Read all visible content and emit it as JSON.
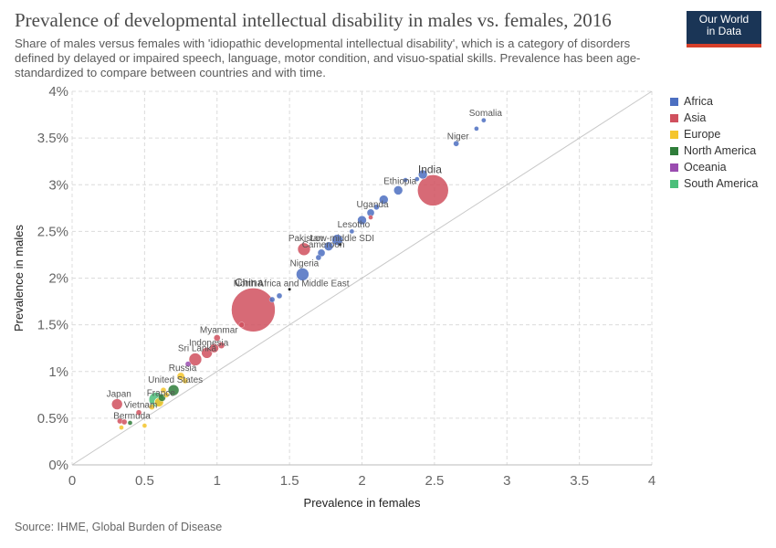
{
  "header": {
    "title": "Prevalence of developmental intellectual disability in males vs. females, 2016",
    "subtitle": "Share of males versus females with 'idiopathic developmental intellectual disability', which is a category of disorders defined by delayed or impaired speech, language, motor condition, and visuo-spatial skills. Prevalence has been age-standardized to compare between countries and with time.",
    "logo_line1": "Our World",
    "logo_line2": "in Data"
  },
  "footer": {
    "source": "Source: IHME, Global Burden of Disease"
  },
  "legend": [
    {
      "label": "Africa",
      "color": "#4c6fc1"
    },
    {
      "label": "Asia",
      "color": "#d0505e"
    },
    {
      "label": "Europe",
      "color": "#f5c52d"
    },
    {
      "label": "North America",
      "color": "#2f7d3a"
    },
    {
      "label": "Oceania",
      "color": "#9a4cb0"
    },
    {
      "label": "South America",
      "color": "#4bbf7a"
    }
  ],
  "chart_data": {
    "type": "scatter",
    "xlabel": "Prevalence in females",
    "ylabel": "Prevalence in males",
    "xlim": [
      0,
      4
    ],
    "ylim": [
      0,
      4
    ],
    "x_ticks": [
      "0",
      "0.5",
      "1",
      "1.5",
      "2",
      "2.5",
      "3",
      "3.5",
      "4"
    ],
    "y_ticks": [
      "0%",
      "0.5%",
      "1%",
      "1.5%",
      "2%",
      "2.5%",
      "3%",
      "3.5%",
      "4%"
    ],
    "grid": true,
    "reference_line": "y = x",
    "points": [
      {
        "label": "Somalia",
        "region": "Africa",
        "x": 2.84,
        "y": 3.69,
        "size": 2.5,
        "show_label": true
      },
      {
        "label": "",
        "region": "Africa",
        "x": 2.79,
        "y": 3.6,
        "size": 2.5
      },
      {
        "label": "Niger",
        "region": "Africa",
        "x": 2.65,
        "y": 3.44,
        "size": 3,
        "show_label": true
      },
      {
        "label": "India",
        "region": "Asia",
        "x": 2.49,
        "y": 2.94,
        "size": 17,
        "show_label": true,
        "big": true
      },
      {
        "label": "",
        "region": "Africa",
        "x": 2.42,
        "y": 3.11,
        "size": 5
      },
      {
        "label": "",
        "region": "Africa",
        "x": 2.38,
        "y": 3.06,
        "size": 2.5
      },
      {
        "label": "",
        "region": "Africa",
        "x": 2.3,
        "y": 3.05,
        "size": 2.5
      },
      {
        "label": "Ethiopia",
        "region": "Africa",
        "x": 2.25,
        "y": 2.94,
        "size": 5,
        "show_label": true
      },
      {
        "label": "",
        "region": "Africa",
        "x": 2.15,
        "y": 2.84,
        "size": 5
      },
      {
        "label": "",
        "region": "Africa",
        "x": 2.1,
        "y": 2.76,
        "size": 3
      },
      {
        "label": "Uganda",
        "region": "Africa",
        "x": 2.06,
        "y": 2.7,
        "size": 4,
        "show_label": true
      },
      {
        "label": "",
        "region": "Africa",
        "x": 2.0,
        "y": 2.62,
        "size": 5
      },
      {
        "label": "",
        "region": "Asia",
        "x": 2.06,
        "y": 2.65,
        "size": 2.5
      },
      {
        "label": "Lesotho",
        "region": "Africa",
        "x": 1.93,
        "y": 2.5,
        "size": 2.5,
        "show_label": true
      },
      {
        "label": "Pakistan",
        "region": "Asia",
        "x": 1.6,
        "y": 2.31,
        "size": 7,
        "show_label": true
      },
      {
        "label": "Low-middle SDI",
        "region": "",
        "x": 1.85,
        "y": 2.36,
        "size": 1.5,
        "show_label": true
      },
      {
        "label": "",
        "region": "Africa",
        "x": 1.83,
        "y": 2.41,
        "size": 6
      },
      {
        "label": "",
        "region": "Africa",
        "x": 1.77,
        "y": 2.34,
        "size": 5
      },
      {
        "label": "Cameroon",
        "region": "Africa",
        "x": 1.72,
        "y": 2.27,
        "size": 4,
        "show_label": true
      },
      {
        "label": "",
        "region": "Africa",
        "x": 1.7,
        "y": 2.22,
        "size": 3
      },
      {
        "label": "Nigeria",
        "region": "Africa",
        "x": 1.59,
        "y": 2.04,
        "size": 7,
        "show_label": true
      },
      {
        "label": "North Africa and Middle East",
        "region": "",
        "x": 1.5,
        "y": 1.88,
        "size": 1.5,
        "show_label": true
      },
      {
        "label": "",
        "region": "Africa",
        "x": 1.43,
        "y": 1.81,
        "size": 3
      },
      {
        "label": "",
        "region": "Africa",
        "x": 1.38,
        "y": 1.77,
        "size": 3
      },
      {
        "label": "China",
        "region": "Asia",
        "x": 1.25,
        "y": 1.66,
        "size": 24,
        "show_label": true,
        "big": true
      },
      {
        "label": "",
        "region": "Asia",
        "x": 1.17,
        "y": 1.5,
        "size": 3
      },
      {
        "label": "Myanmar",
        "region": "Asia",
        "x": 1.0,
        "y": 1.36,
        "size": 3.5,
        "show_label": true
      },
      {
        "label": "",
        "region": "Asia",
        "x": 1.03,
        "y": 1.28,
        "size": 3.5
      },
      {
        "label": "",
        "region": "Asia",
        "x": 0.98,
        "y": 1.25,
        "size": 5
      },
      {
        "label": "Indonesia",
        "region": "Asia",
        "x": 0.93,
        "y": 1.2,
        "size": 6,
        "show_label": true
      },
      {
        "label": "Sri Lanka",
        "region": "Asia",
        "x": 0.85,
        "y": 1.13,
        "size": 7,
        "show_label": true
      },
      {
        "label": "",
        "region": "Oceania",
        "x": 0.8,
        "y": 1.08,
        "size": 3
      },
      {
        "label": "Russia",
        "region": "Europe",
        "x": 0.75,
        "y": 0.95,
        "size": 4,
        "show_label": true
      },
      {
        "label": "",
        "region": "Europe",
        "x": 0.78,
        "y": 0.9,
        "size": 3
      },
      {
        "label": "United States",
        "region": "North America",
        "x": 0.7,
        "y": 0.8,
        "size": 6,
        "show_label": true
      },
      {
        "label": "",
        "region": "Europe",
        "x": 0.65,
        "y": 0.75,
        "size": 3
      },
      {
        "label": "",
        "region": "North America",
        "x": 0.62,
        "y": 0.72,
        "size": 4
      },
      {
        "label": "France",
        "region": "Europe",
        "x": 0.6,
        "y": 0.67,
        "size": 5,
        "show_label": true
      },
      {
        "label": "",
        "region": "South America",
        "x": 0.58,
        "y": 0.7,
        "size": 8
      },
      {
        "label": "",
        "region": "Europe",
        "x": 0.55,
        "y": 0.62,
        "size": 3
      },
      {
        "label": "Japan",
        "region": "Asia",
        "x": 0.31,
        "y": 0.65,
        "size": 6,
        "show_label": true
      },
      {
        "label": "Vietnam",
        "region": "Asia",
        "x": 0.46,
        "y": 0.56,
        "size": 3,
        "show_label": true
      },
      {
        "label": "Bermuda",
        "region": "North America",
        "x": 0.4,
        "y": 0.45,
        "size": 2.5,
        "show_label": true
      },
      {
        "label": "",
        "region": "Asia",
        "x": 0.33,
        "y": 0.47,
        "size": 3
      },
      {
        "label": "",
        "region": "Asia",
        "x": 0.36,
        "y": 0.46,
        "size": 3
      },
      {
        "label": "",
        "region": "Europe",
        "x": 0.34,
        "y": 0.4,
        "size": 2.5
      },
      {
        "label": "",
        "region": "Europe",
        "x": 0.5,
        "y": 0.42,
        "size": 2.5
      },
      {
        "label": "",
        "region": "Europe",
        "x": 0.63,
        "y": 0.8,
        "size": 3
      }
    ]
  }
}
